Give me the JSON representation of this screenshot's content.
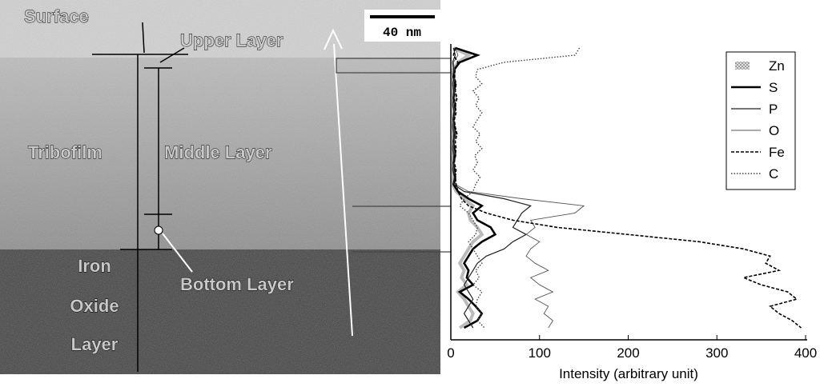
{
  "image": {
    "labels": {
      "surface": "Surface",
      "upper_layer": "Upper Layer",
      "tribofilm": "Tribofilm",
      "middle_layer": "Middle Layer",
      "iron_oxide_layer": [
        "Iron",
        "Oxide",
        "Layer"
      ],
      "bottom_layer": "Bottom Layer",
      "scale_bar": "40 nm"
    }
  },
  "chart_data": {
    "type": "line",
    "xlabel": "Intensity (arbitrary unit)",
    "xlim": [
      0,
      400
    ],
    "xticks": [
      0,
      100,
      200,
      300,
      400
    ],
    "legend": "upper right",
    "series": [
      {
        "name": "Zn",
        "color": "#777777",
        "line_style": "shaded",
        "values": [
          3,
          20,
          8,
          3,
          2,
          3,
          3,
          2,
          3,
          3,
          2,
          3,
          3,
          2,
          3,
          3,
          2,
          3,
          3,
          2,
          6,
          15,
          25,
          20,
          22,
          30,
          35,
          25,
          20,
          15,
          10,
          15,
          12,
          18,
          8,
          15,
          20,
          25,
          22,
          10
        ]
      },
      {
        "name": "S",
        "color": "#000000",
        "line_style": "thick",
        "values": [
          5,
          30,
          10,
          4,
          3,
          5,
          4,
          3,
          5,
          4,
          3,
          4,
          5,
          3,
          4,
          5,
          3,
          4,
          5,
          3,
          8,
          20,
          35,
          25,
          30,
          45,
          50,
          35,
          25,
          20,
          15,
          20,
          18,
          25,
          10,
          20,
          28,
          35,
          30,
          15
        ]
      },
      {
        "name": "P",
        "color": "#222222",
        "line_style": "solid",
        "values": [
          3,
          5,
          2,
          3,
          4,
          2,
          3,
          3,
          2,
          4,
          3,
          2,
          3,
          3,
          2,
          3,
          3,
          2,
          4,
          3,
          15,
          60,
          90,
          80,
          75,
          70,
          85,
          70,
          60,
          40,
          30,
          25,
          20,
          15,
          20,
          25,
          20,
          15,
          20,
          25
        ]
      },
      {
        "name": "O",
        "color": "#555555",
        "line_style": "thin",
        "values": [
          5,
          8,
          3,
          4,
          5,
          3,
          4,
          6,
          3,
          5,
          4,
          3,
          5,
          4,
          3,
          5,
          4,
          3,
          6,
          5,
          20,
          80,
          150,
          140,
          90,
          95,
          85,
          100,
          90,
          85,
          95,
          110,
          90,
          100,
          115,
          95,
          110,
          105,
          115,
          110
        ]
      },
      {
        "name": "Fe",
        "color": "#000000",
        "line_style": "dashed",
        "values": [
          5,
          3,
          8,
          5,
          4,
          6,
          5,
          7,
          5,
          6,
          4,
          5,
          7,
          5,
          6,
          5,
          4,
          6,
          5,
          6,
          8,
          12,
          20,
          40,
          70,
          120,
          200,
          280,
          330,
          360,
          355,
          370,
          330,
          350,
          380,
          390,
          360,
          370,
          385,
          395
        ]
      },
      {
        "name": "C",
        "color": "#444444",
        "line_style": "dotted",
        "values": [
          145,
          140,
          60,
          30,
          28,
          35,
          25,
          32,
          28,
          35,
          30,
          25,
          33,
          28,
          35,
          27,
          30,
          25,
          33,
          28,
          25,
          15,
          10,
          20,
          25,
          30,
          28,
          20,
          25,
          30,
          35,
          28,
          32,
          25,
          35,
          30,
          28,
          35,
          30,
          38
        ]
      }
    ]
  }
}
